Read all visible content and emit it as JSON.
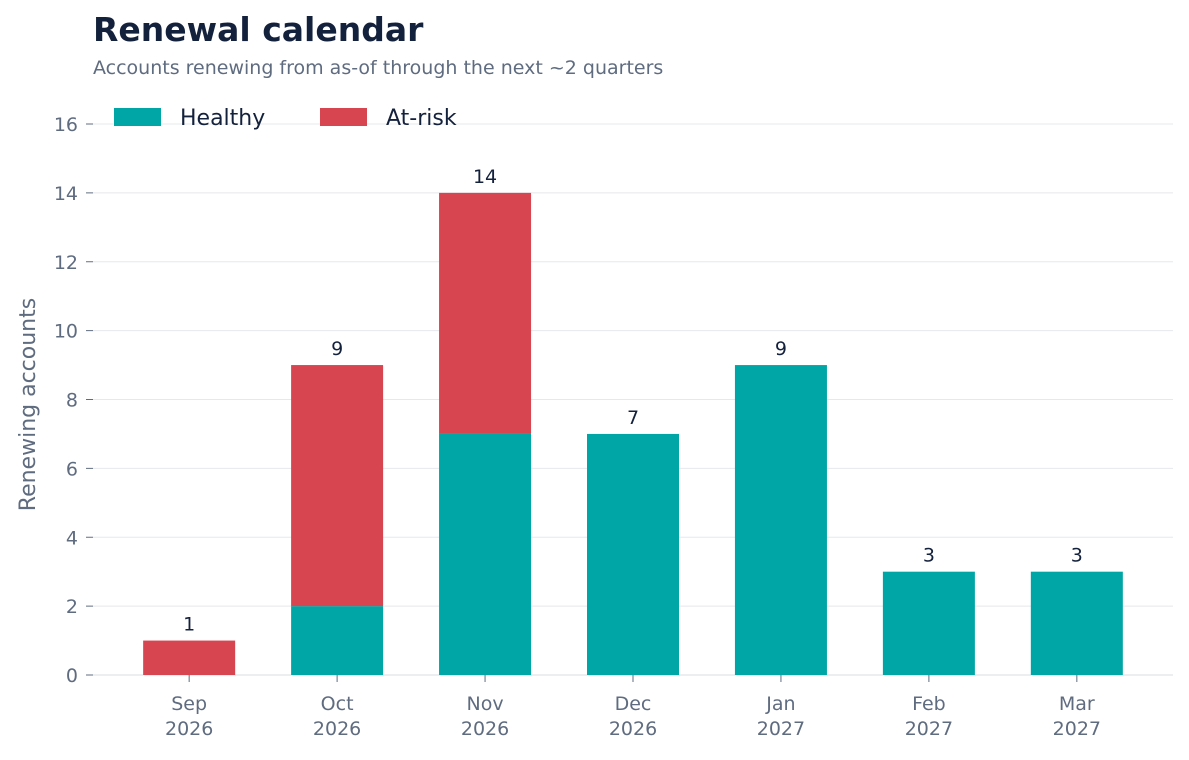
{
  "title": "Renewal calendar",
  "subtitle": "Accounts renewing from as-of through the next ~2 quarters",
  "colors": {
    "healthy": "#00a6a6",
    "at_risk": "#d64550",
    "text": "#14213d",
    "muted": "#5f6c80",
    "grid": "#e6e8ec"
  },
  "chart_data": {
    "type": "bar",
    "stacked": true,
    "categories": [
      "Sep\n2026",
      "Oct\n2026",
      "Nov\n2026",
      "Dec\n2026",
      "Jan\n2027",
      "Feb\n2027",
      "Mar\n2027"
    ],
    "series": [
      {
        "name": "Healthy",
        "values": [
          0,
          2,
          7,
          7,
          9,
          3,
          3
        ],
        "color": "#00a6a6"
      },
      {
        "name": "At-risk",
        "values": [
          1,
          7,
          7,
          0,
          0,
          0,
          0
        ],
        "color": "#d64550"
      }
    ],
    "totals": [
      1,
      9,
      14,
      7,
      9,
      3,
      3
    ],
    "ylabel": "Renewing accounts",
    "xlabel": "",
    "ylim": [
      0,
      16
    ],
    "yticks": [
      0,
      2,
      4,
      6,
      8,
      10,
      12,
      14,
      16
    ],
    "grid": true,
    "legend": "top-left"
  }
}
